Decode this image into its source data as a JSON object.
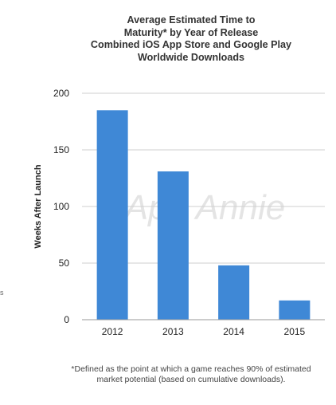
{
  "chart_data": {
    "type": "bar",
    "title": [
      "Average Estimated Time to",
      "Maturity* by Year of Release",
      "Combined iOS App Store and Google Play",
      "Worldwide Downloads"
    ],
    "categories": [
      "2012",
      "2013",
      "2014",
      "2015"
    ],
    "values": [
      185,
      131,
      48,
      17
    ],
    "ylabel": "Weeks After Launch",
    "xlabel": "",
    "ylim": [
      0,
      200
    ],
    "yticks": [
      "0",
      "50",
      "100",
      "150",
      "200"
    ],
    "grid": true,
    "bar_color": "#3f88d6",
    "grid_color": "#cfcfcf",
    "watermark": "App Annie",
    "footnote": [
      "*Defined as the point at which a game reaches 90% of estimated",
      "market potential (based on cumulative downloads)."
    ]
  },
  "left_edge_fragment": "s"
}
